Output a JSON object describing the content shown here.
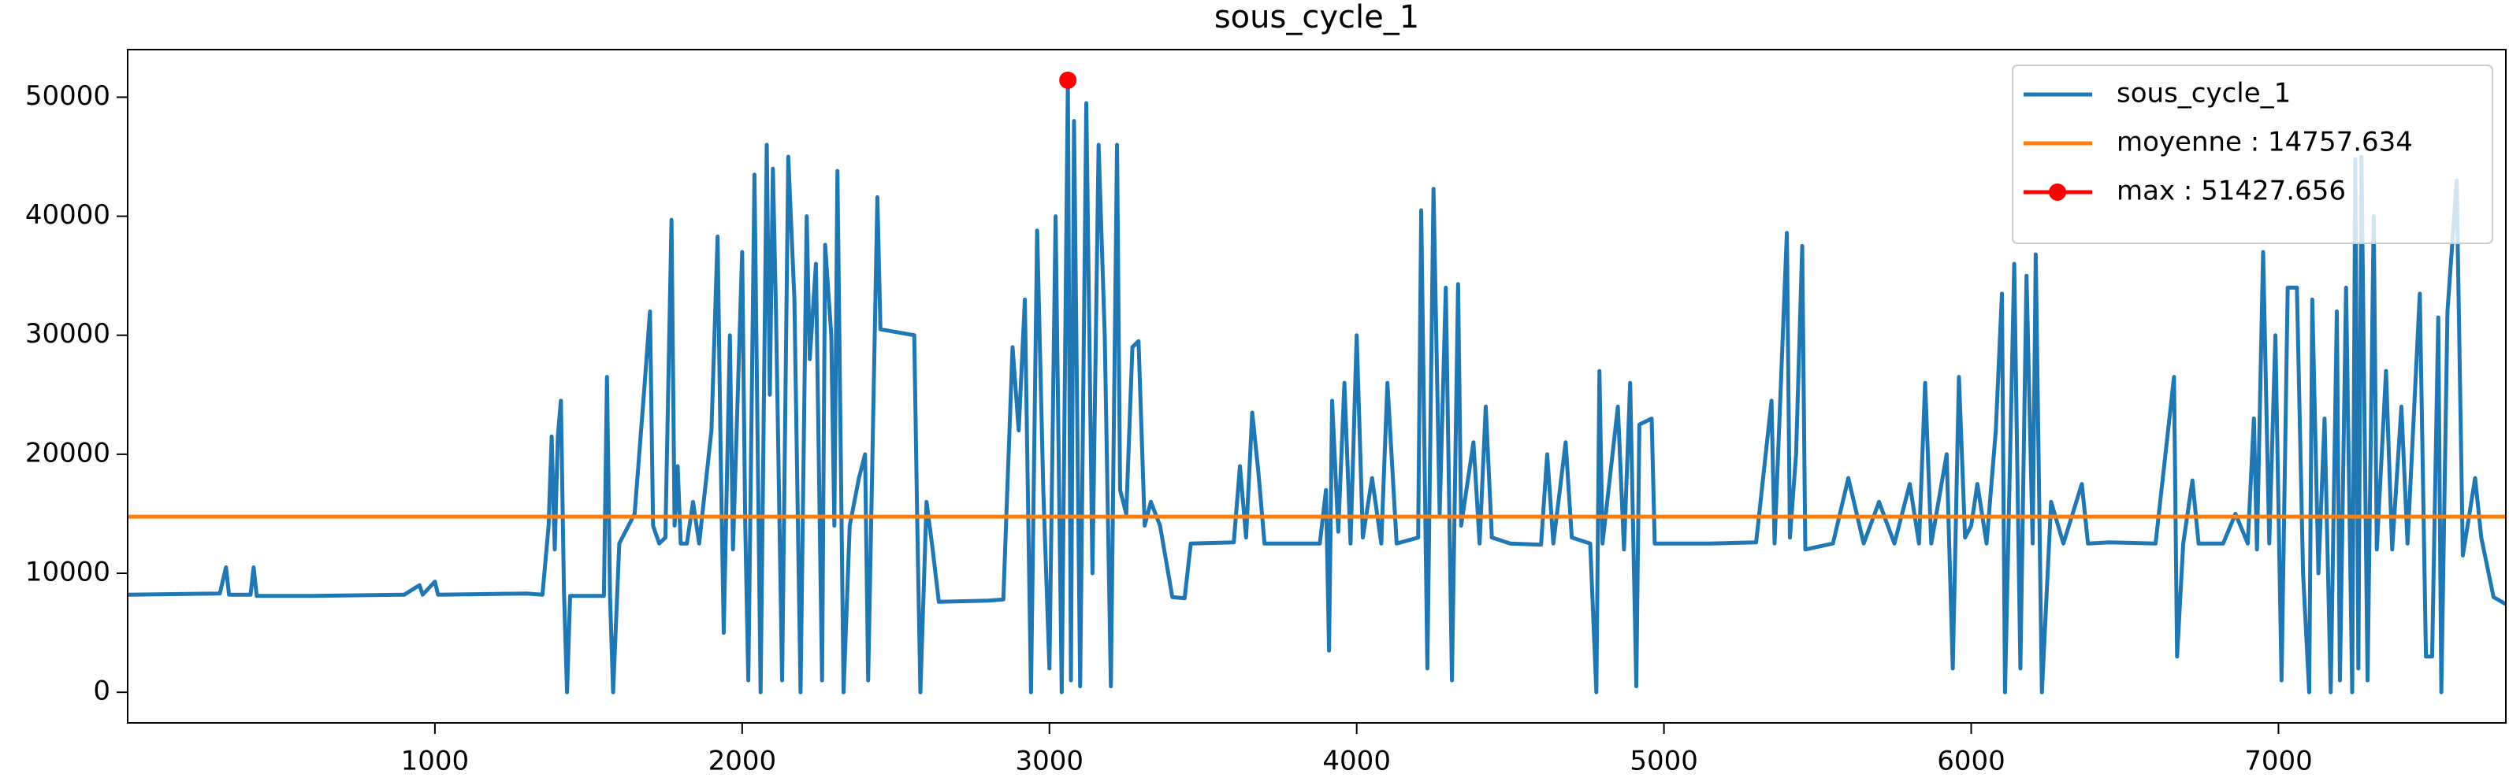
{
  "chart_data": {
    "type": "line",
    "title": "sous_cycle_1",
    "xlim": [
      0,
      7740
    ],
    "ylim": [
      -2570,
      54000
    ],
    "xticks": [
      1000,
      2000,
      3000,
      4000,
      5000,
      6000,
      7000
    ],
    "yticks": [
      0,
      10000,
      20000,
      30000,
      40000,
      50000
    ],
    "grid": false,
    "legend": "upper right",
    "series": [
      {
        "name": "sous_cycle_1",
        "color": "#1f77b4",
        "x": [
          0,
          300,
          320,
          330,
          400,
          410,
          420,
          600,
          900,
          950,
          960,
          1000,
          1010,
          1300,
          1350,
          1370,
          1380,
          1390,
          1400,
          1410,
          1420,
          1430,
          1440,
          1550,
          1560,
          1570,
          1580,
          1600,
          1650,
          1680,
          1700,
          1710,
          1730,
          1750,
          1770,
          1780,
          1790,
          1800,
          1820,
          1840,
          1860,
          1900,
          1920,
          1930,
          1940,
          1960,
          1970,
          2000,
          2010,
          2020,
          2040,
          2060,
          2080,
          2090,
          2100,
          2110,
          2130,
          2150,
          2170,
          2190,
          2210,
          2220,
          2240,
          2260,
          2270,
          2290,
          2300,
          2310,
          2330,
          2350,
          2380,
          2400,
          2410,
          2440,
          2450,
          2560,
          2570,
          2580,
          2600,
          2620,
          2640,
          2800,
          2850,
          2860,
          2880,
          2900,
          2920,
          2940,
          2960,
          2980,
          3000,
          3020,
          3040,
          3060,
          3070,
          3080,
          3100,
          3120,
          3140,
          3160,
          3180,
          3200,
          3220,
          3230,
          3250,
          3270,
          3290,
          3310,
          3330,
          3360,
          3400,
          3440,
          3460,
          3600,
          3620,
          3640,
          3660,
          3680,
          3700,
          3880,
          3900,
          3910,
          3920,
          3940,
          3960,
          3980,
          4000,
          4020,
          4050,
          4080,
          4100,
          4130,
          4200,
          4210,
          4230,
          4250,
          4270,
          4290,
          4310,
          4330,
          4340,
          4380,
          4400,
          4420,
          4440,
          4500,
          4600,
          4620,
          4640,
          4680,
          4700,
          4760,
          4780,
          4790,
          4800,
          4850,
          4870,
          4890,
          4910,
          4920,
          4960,
          4970,
          5150,
          5300,
          5350,
          5360,
          5400,
          5410,
          5430,
          5450,
          5460,
          5550,
          5600,
          5650,
          5700,
          5750,
          5800,
          5830,
          5850,
          5870,
          5920,
          5940,
          5960,
          5980,
          6000,
          6020,
          6050,
          6080,
          6100,
          6110,
          6140,
          6160,
          6180,
          6200,
          6210,
          6230,
          6260,
          6300,
          6360,
          6380,
          6450,
          6600,
          6660,
          6670,
          6690,
          6720,
          6740,
          6820,
          6860,
          6900,
          6920,
          6930,
          6950,
          6970,
          6990,
          7010,
          7030,
          7060,
          7080,
          7100,
          7110,
          7130,
          7150,
          7170,
          7190,
          7200,
          7220,
          7240,
          7250,
          7260,
          7270,
          7290,
          7310,
          7320,
          7350,
          7370,
          7400,
          7420,
          7460,
          7480,
          7500,
          7520,
          7530,
          7550,
          7580,
          7600,
          7640,
          7660,
          7700,
          7740
        ],
        "values": [
          8200,
          8300,
          10500,
          8200,
          8200,
          10500,
          8100,
          8100,
          8200,
          9000,
          8200,
          9300,
          8200,
          8300,
          8200,
          14000,
          21500,
          12000,
          21500,
          24500,
          8500,
          0,
          8100,
          8100,
          26500,
          8000,
          0,
          12500,
          15000,
          25000,
          32000,
          14000,
          12500,
          13000,
          39700,
          14000,
          19000,
          12500,
          12500,
          16000,
          12500,
          22000,
          38300,
          20000,
          5000,
          30000,
          12000,
          37000,
          14000,
          1000,
          43500,
          0,
          46000,
          25000,
          44000,
          32000,
          1000,
          45000,
          33000,
          0,
          40000,
          28000,
          36000,
          1000,
          37600,
          30000,
          14000,
          43800,
          0,
          14000,
          18000,
          20000,
          1000,
          41600,
          30500,
          30000,
          14000,
          0,
          16000,
          12000,
          7600,
          7700,
          7800,
          15000,
          29000,
          22000,
          33000,
          0,
          38800,
          17000,
          2000,
          40000,
          0,
          51427.656,
          1000,
          48000,
          500,
          49500,
          10000,
          46000,
          30000,
          500,
          46000,
          17000,
          15000,
          29000,
          29500,
          14000,
          16000,
          14000,
          8000,
          7900,
          12500,
          12600,
          19000,
          13000,
          23500,
          18500,
          12500,
          12500,
          17000,
          3500,
          24500,
          13500,
          26000,
          12500,
          30000,
          13000,
          18000,
          12500,
          26000,
          12500,
          13000,
          40500,
          2000,
          42300,
          15000,
          34000,
          1000,
          34300,
          14000,
          21000,
          12500,
          24000,
          13000,
          12500,
          12400,
          20000,
          12500,
          21000,
          13000,
          12500,
          0,
          27000,
          12500,
          24000,
          12000,
          26000,
          500,
          22500,
          23000,
          12500,
          12500,
          12600,
          24500,
          12500,
          38600,
          13000,
          20000,
          37500,
          12000,
          12500,
          18000,
          12500,
          16000,
          12500,
          17500,
          12500,
          26000,
          12500,
          20000,
          2000,
          26500,
          13000,
          14000,
          17500,
          12500,
          22000,
          33500,
          0,
          36000,
          2000,
          35000,
          12500,
          36800,
          0,
          16000,
          12500,
          17500,
          12500,
          12600,
          12500,
          26500,
          3000,
          12500,
          17800,
          12500,
          12500,
          15000,
          12500,
          23000,
          12000,
          37000,
          12500,
          30000,
          1000,
          34000,
          34000,
          10000,
          0,
          33000,
          10000,
          23000,
          0,
          32000,
          1000,
          34000,
          0,
          44800,
          2000,
          45000,
          1000,
          40000,
          12000,
          27000,
          12000,
          24000,
          12500,
          33500,
          3000,
          3000,
          31500,
          0,
          32000,
          43000,
          11500,
          18000,
          13000,
          8000,
          7400
        ]
      },
      {
        "name": "moyenne : 14757.634",
        "color": "#ff7f0e",
        "hline": 14757.634
      },
      {
        "name": "max : 51427.656",
        "color": "#ff0000",
        "marker": "o",
        "x": [
          3060
        ],
        "values": [
          51427.656
        ]
      }
    ]
  }
}
